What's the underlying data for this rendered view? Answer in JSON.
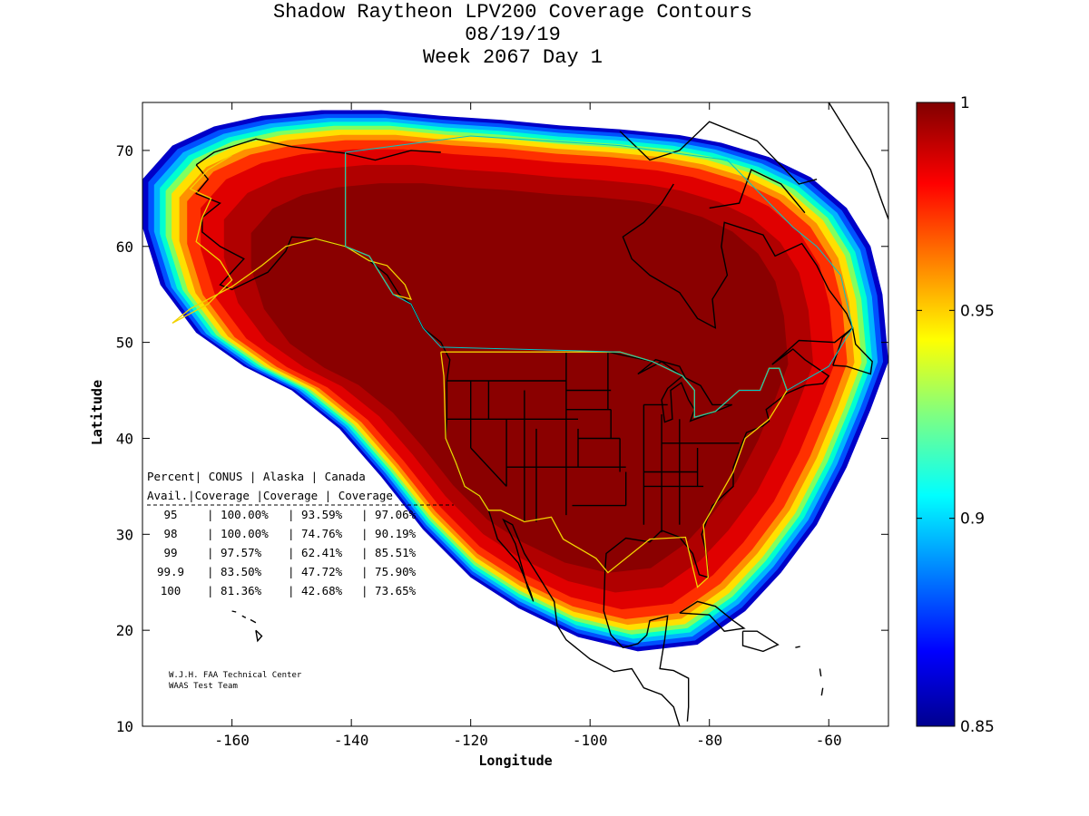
{
  "title_lines": [
    "Shadow Raytheon LPV200 Coverage Contours",
    "08/19/19",
    "Week 2067 Day 1"
  ],
  "chart_data": {
    "type": "heatmap",
    "title": "Shadow Raytheon LPV200 Coverage Contours",
    "subtitle": [
      "08/19/19",
      "Week 2067 Day 1"
    ],
    "xlabel": "Longitude",
    "ylabel": "Latitude",
    "xlim": [
      -175,
      -50
    ],
    "ylim": [
      10,
      75
    ],
    "xticks": [
      -160,
      -140,
      -120,
      -100,
      -80,
      -60
    ],
    "yticks": [
      10,
      20,
      30,
      40,
      50,
      60,
      70
    ],
    "xtick_labels": [
      "-160",
      "-140",
      "-120",
      "-100",
      "-80",
      "-60"
    ],
    "ytick_labels": [
      "10",
      "20",
      "30",
      "40",
      "50",
      "60",
      "70"
    ],
    "colorbar": {
      "range": [
        0.85,
        1
      ],
      "ticks": [
        1,
        0.95,
        0.9,
        0.85
      ],
      "tick_labels": [
        "1",
        "0.95",
        "0.9",
        "0.85"
      ],
      "colormap": "jet"
    },
    "coverage_table": {
      "header1": [
        "Percent",
        "CONUS",
        "Alaska",
        "Canada"
      ],
      "header2": [
        "Avail.",
        "Coverage",
        "Coverage",
        "Coverage"
      ],
      "rows": [
        {
          "avail": "95",
          "conus": "100.00%",
          "alaska": "93.59%",
          "canada": "97.06%"
        },
        {
          "avail": "98",
          "conus": "100.00%",
          "alaska": "74.76%",
          "canada": "90.19%"
        },
        {
          "avail": "99",
          "conus": "97.57%",
          "alaska": "62.41%",
          "canada": "85.51%"
        },
        {
          "avail": "99.9",
          "conus": "83.50%",
          "alaska": "47.72%",
          "canada": "75.90%"
        },
        {
          "avail": "100",
          "conus": "81.36%",
          "alaska": "42.68%",
          "canada": "73.65%"
        }
      ]
    },
    "grid": false,
    "colors": {
      "jet_low": "#00008f",
      "jet_high": "#800000",
      "service_boundary": "#f2d200",
      "border": "#00c8c8"
    }
  },
  "credits": [
    "W.J.H. FAA Technical Center",
    "WAAS Test Team"
  ]
}
